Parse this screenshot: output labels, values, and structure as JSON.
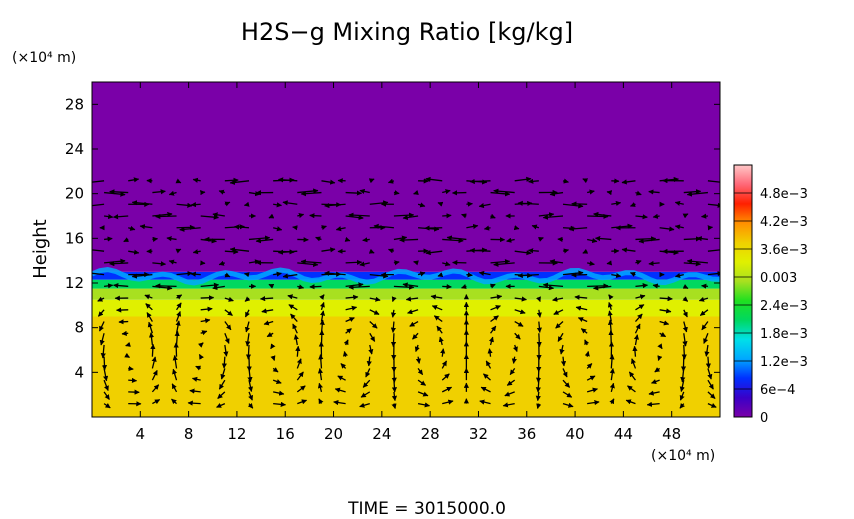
{
  "chart_data": {
    "type": "heatmap",
    "title": "H2S−g Mixing Ratio [kg/kg]",
    "xlabel": "",
    "ylabel": "Height",
    "x_unit": "(×10⁴ m)",
    "y_unit": "(×10⁴ m)",
    "xlim": [
      0,
      52
    ],
    "ylim": [
      0,
      30
    ],
    "x_ticks": [
      4,
      8,
      12,
      16,
      20,
      24,
      28,
      32,
      36,
      40,
      44,
      48
    ],
    "y_ticks": [
      4,
      8,
      12,
      16,
      20,
      24,
      28
    ],
    "colorbar": {
      "range": [
        0,
        0.0054
      ],
      "tick_values": [
        0,
        0.0006,
        0.0012,
        0.0018,
        0.0024,
        0.003,
        0.0036,
        0.0042,
        0.0048
      ],
      "tick_labels": [
        "0",
        "6e−4",
        "1.2e−3",
        "1.8e−3",
        "2.4e−3",
        "0.003",
        "3.6e−3",
        "4.2e−3",
        "4.8e−3"
      ]
    },
    "field_layers": [
      {
        "y_bottom": 0,
        "y_top": 9,
        "value": 0.0036
      },
      {
        "y_bottom": 9,
        "y_top": 10.5,
        "value": 0.0033
      },
      {
        "y_bottom": 10.5,
        "y_top": 11.5,
        "value": 0.0029
      },
      {
        "y_bottom": 11.5,
        "y_top": 12.3,
        "value": 0.0019
      },
      {
        "y_bottom": 12.3,
        "y_top": 13,
        "value": 0.0008
      },
      {
        "y_bottom": 13,
        "y_top": 30,
        "value": 0
      }
    ],
    "footer": "TIME  =  3015000.0"
  },
  "colors": {
    "colormap": [
      "#7a00a8",
      "#3a00c8",
      "#0030ff",
      "#00a8ff",
      "#00e0e8",
      "#00d860",
      "#20e020",
      "#a8e020",
      "#e0f000",
      "#f0d000",
      "#ff9000",
      "#ff2000",
      "#ff6878",
      "#ffc8c8"
    ],
    "arrow": "#000000"
  }
}
